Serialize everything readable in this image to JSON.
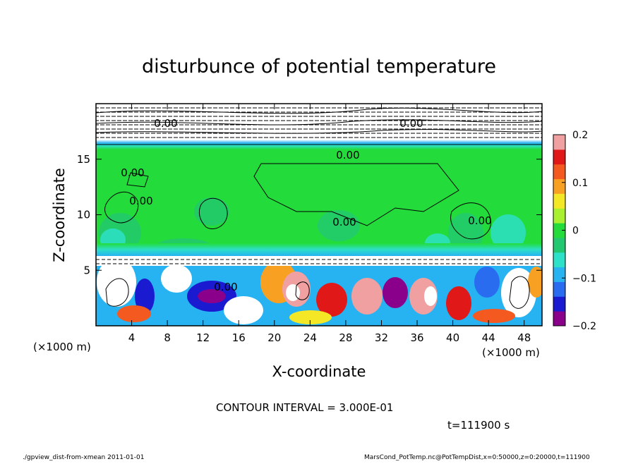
{
  "header": {
    "title": "disturbunce of potential temperature"
  },
  "chart_data": {
    "type": "heatmap",
    "title": "disturbunce of potential temperature",
    "xlabel": "X-coordinate",
    "ylabel": "Z-coordinate",
    "x_unit_left": "(×1000 m)",
    "x_unit_right": "(×1000 m)",
    "xlim": [
      0,
      50
    ],
    "ylim": [
      0,
      20
    ],
    "x_ticks": [
      4,
      8,
      12,
      16,
      20,
      24,
      28,
      32,
      36,
      40,
      44,
      48
    ],
    "y_ticks": [
      5,
      10,
      15
    ],
    "colorbar": {
      "range": [
        -0.2,
        0.2
      ],
      "ticks": [
        {
          "value": 0.2,
          "label": "0.2"
        },
        {
          "value": 0.1,
          "label": "0.1"
        },
        {
          "value": 0,
          "label": "0"
        },
        {
          "value": -0.1,
          "label": "−0.1"
        },
        {
          "value": -0.2,
          "label": "−0.2"
        }
      ],
      "colors": [
        "#8b008b",
        "#1a1ad0",
        "#2a6cf0",
        "#27b2f2",
        "#2de0c8",
        "#22c870",
        "#23dc3c",
        "#a8f030",
        "#f4e826",
        "#f8a022",
        "#f45a20",
        "#e01818",
        "#f0a0a0"
      ]
    },
    "layers": {
      "green_band_z": [
        6.5,
        16.3
      ],
      "top_band_z": [
        16.3,
        20
      ],
      "bottom_band_z": [
        0,
        6.5
      ]
    },
    "contour_labels": [
      "0.00",
      "0.00",
      "0.00",
      "0.00",
      "0.00",
      "0.00",
      "0.00",
      "0.00"
    ],
    "contour_interval_text": "CONTOUR INTERVAL = 3.000E-01",
    "time_text": "t=111900 s"
  },
  "footer": {
    "left": "./gpview_dist-from-xmean  2011-01-01",
    "right": "MarsCond_PotTemp.nc@PotTempDist,x=0:50000,z=0:20000,t=111900"
  }
}
